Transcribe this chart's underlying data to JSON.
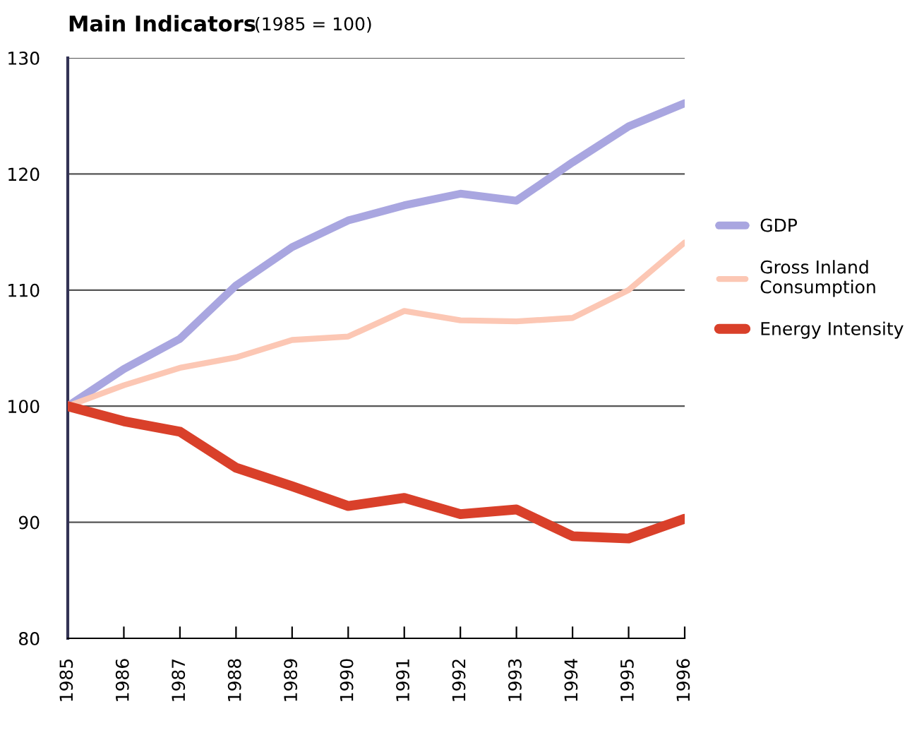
{
  "chart_data": {
    "type": "line",
    "title": "Main Indicators",
    "subtitle": "(1985 = 100)",
    "categories": [
      "1985",
      "1986",
      "1987",
      "1988",
      "1989",
      "1990",
      "1991",
      "1992",
      "1993",
      "1994",
      "1995",
      "1996"
    ],
    "series": [
      {
        "name": "GDP",
        "color": "#a9a6e0",
        "values": [
          100,
          103.2,
          105.8,
          110.4,
          113.7,
          116,
          117.3,
          118.3,
          117.7,
          121,
          124.1,
          126.1
        ]
      },
      {
        "name": "Gross Inland\nConsumption",
        "color": "#fcc7b4",
        "values": [
          100,
          101.8,
          103.3,
          104.2,
          105.7,
          106,
          108.2,
          107.4,
          107.3,
          107.6,
          110,
          114.1
        ]
      },
      {
        "name": "Energy Intensity",
        "color": "#d9402a",
        "values": [
          100,
          98.7,
          97.8,
          94.7,
          93.1,
          91.4,
          92.1,
          90.7,
          91.1,
          88.8,
          88.6,
          90.3
        ]
      }
    ],
    "ylim": [
      80,
      130
    ],
    "yticks": [
      80,
      90,
      100,
      110,
      120,
      130
    ],
    "grid": "y",
    "legend": "right",
    "line_style": "solid",
    "marker": "none"
  }
}
